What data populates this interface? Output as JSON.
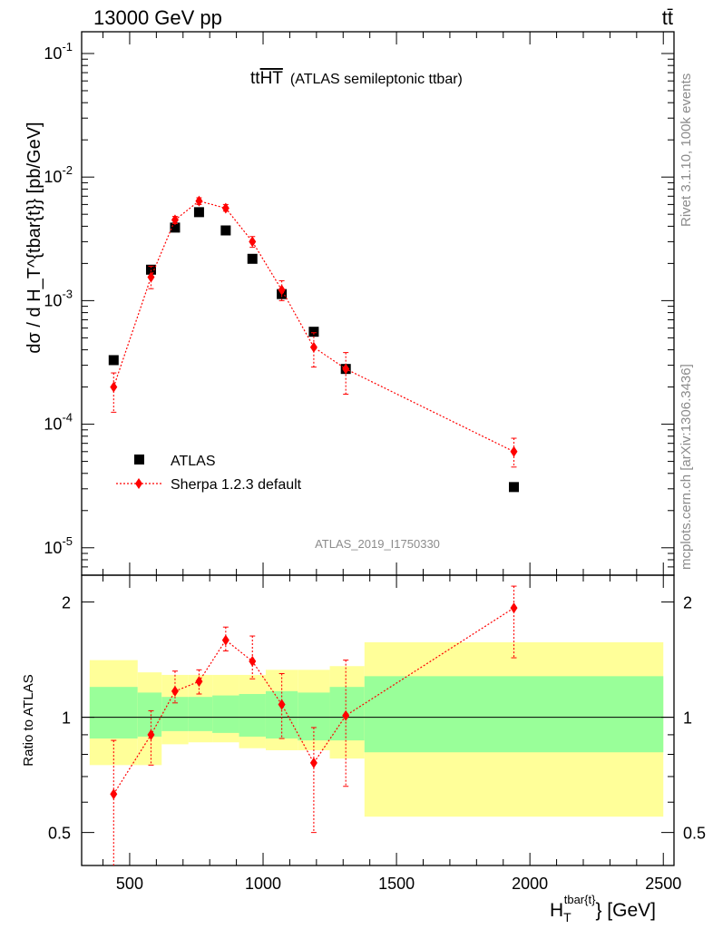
{
  "header": {
    "energy_label": "13000 GeV pp",
    "process_label": "tt̄"
  },
  "side_labels": {
    "rivet": "Rivet 3.1.10,  100k events",
    "mcplots": "mcplots.cern.ch [arXiv:1306.3436]"
  },
  "analysis_id": "ATLAS_2019_I1750330",
  "chart_data": [
    {
      "type": "scatter",
      "panel": "main",
      "title_main": "tt",
      "title_overline": "HT",
      "title_sub": "(ATLAS semileptonic ttbar)",
      "ylabel": "dσ / d H_T^{tbar{t}} [pb/GeV]",
      "yscale": "log",
      "ylim": [
        6e-06,
        0.15
      ],
      "xlim": [
        320,
        2540
      ],
      "y_tick_labels": [
        "10^-5",
        "10^-4",
        "10^-3",
        "10^-2",
        "10^-1"
      ],
      "legend_position": "bottom-left",
      "series": [
        {
          "name": "ATLAS",
          "color": "#000000",
          "marker": "square",
          "x": [
            440,
            580,
            670,
            760,
            860,
            960,
            1070,
            1190,
            1310,
            1940
          ],
          "y": [
            0.00033,
            0.00178,
            0.0039,
            0.0052,
            0.0037,
            0.00218,
            0.00113,
            0.00056,
            0.00028,
            3.1e-05
          ]
        },
        {
          "name": "Sherpa 1.2.3 default",
          "color": "#ff0000",
          "marker": "diamond",
          "line": "dotted",
          "x": [
            440,
            580,
            670,
            760,
            860,
            960,
            1070,
            1190,
            1310,
            1940
          ],
          "y": [
            0.0002,
            0.00155,
            0.0045,
            0.0064,
            0.0056,
            0.003,
            0.00122,
            0.00042,
            0.00028,
            6e-05
          ],
          "yerr_low": [
            0.000125,
            0.00125,
            0.0042,
            0.006,
            0.0053,
            0.0027,
            0.001,
            0.00029,
            0.000175,
            4.5e-05
          ],
          "yerr_high": [
            0.00026,
            0.0019,
            0.0048,
            0.0068,
            0.006,
            0.0033,
            0.00145,
            0.00055,
            0.00038,
            7.7e-05
          ]
        }
      ]
    },
    {
      "type": "scatter",
      "panel": "ratio",
      "ylabel": "Ratio to ATLAS",
      "yscale": "log",
      "ylim": [
        0.41,
        2.35
      ],
      "xlim": [
        320,
        2540
      ],
      "xlabel_main": "H",
      "xlabel_sub": "T",
      "xlabel_sup": "tbar{t}",
      "xlabel_tail": "} [GeV]",
      "x_ticks": [
        500,
        1000,
        1500,
        2000,
        2500
      ],
      "x_tick_labels": [
        "500",
        "1000",
        "1500",
        "2000",
        "2500"
      ],
      "y_ticks": [
        0.5,
        1,
        2
      ],
      "y_tick_labels": [
        "0.5",
        "1",
        "2"
      ],
      "bands": {
        "edges": [
          350,
          530,
          620,
          720,
          810,
          910,
          1010,
          1130,
          1250,
          1380,
          2500
        ],
        "yellow_low": [
          0.75,
          0.75,
          0.85,
          0.86,
          0.86,
          0.83,
          0.82,
          0.82,
          0.78,
          0.55
        ],
        "yellow_high": [
          1.41,
          1.31,
          1.29,
          1.29,
          1.29,
          1.29,
          1.33,
          1.33,
          1.36,
          1.57
        ],
        "green_low": [
          0.88,
          0.89,
          0.92,
          0.92,
          0.91,
          0.89,
          0.88,
          0.87,
          0.87,
          0.81
        ],
        "green_high": [
          1.2,
          1.16,
          1.13,
          1.13,
          1.14,
          1.15,
          1.17,
          1.16,
          1.2,
          1.28
        ],
        "yellow_color": "#ffff99",
        "green_color": "#99ff99"
      },
      "series": [
        {
          "name": "Sherpa 1.2.3 default",
          "color": "#ff0000",
          "x": [
            440,
            580,
            670,
            760,
            860,
            960,
            1070,
            1190,
            1310,
            1940
          ],
          "y": [
            0.63,
            0.9,
            1.17,
            1.24,
            1.59,
            1.4,
            1.08,
            0.76,
            1.01,
            1.93
          ],
          "yerr_low": [
            0.35,
            0.75,
            1.09,
            1.15,
            1.49,
            1.26,
            0.88,
            0.5,
            0.66,
            1.43
          ],
          "yerr_high": [
            0.87,
            1.04,
            1.32,
            1.33,
            1.72,
            1.63,
            1.3,
            0.94,
            1.41,
            2.2
          ]
        }
      ]
    }
  ]
}
